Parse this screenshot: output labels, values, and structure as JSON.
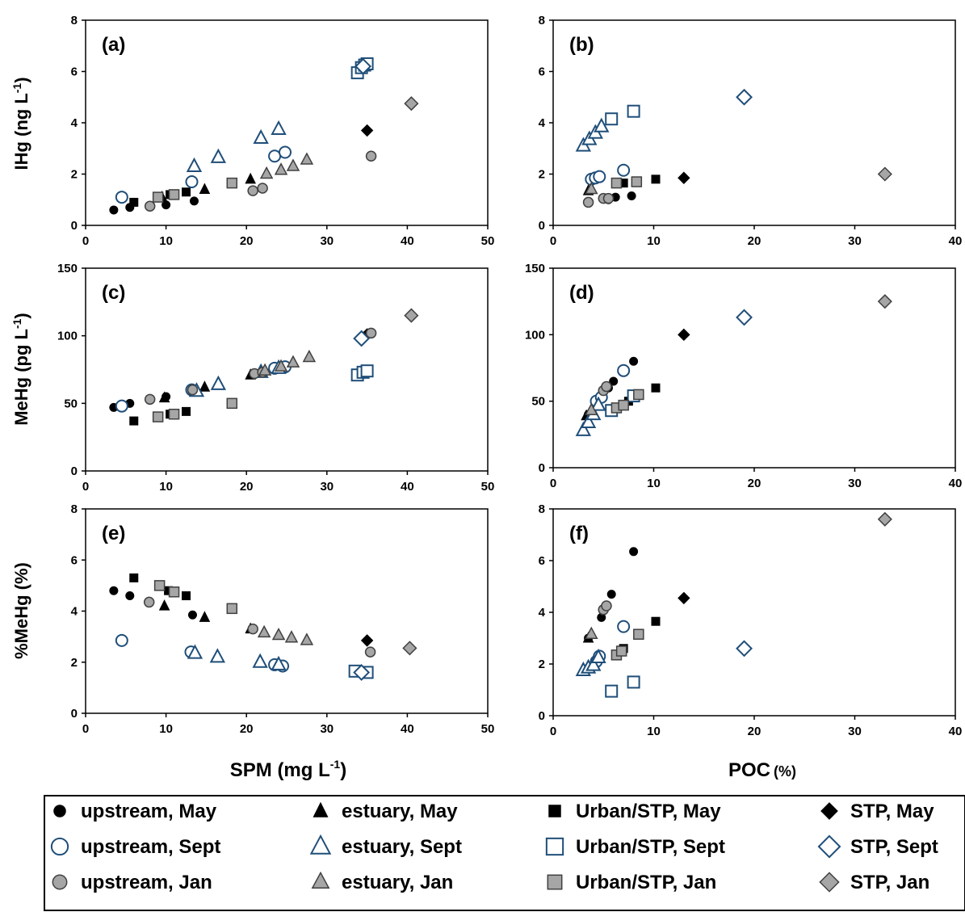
{
  "colors": {
    "may": "#000000",
    "sept_stroke": "#1f4e79",
    "sept_fill": "#ffffff",
    "jan_fill": "#a6a6a6",
    "jan_stroke": "#404040"
  },
  "axis_labels": {
    "a": "IHg (ng L",
    "a_sup": "-1",
    "a_end": ")",
    "c": "MeHg (pg L",
    "c_sup": "-1",
    "c_end": ")",
    "e": "%MeHg (%)",
    "x_left": "SPM (mg L",
    "x_left_sup": "-1",
    "x_left_end": ")",
    "x_right": "POC",
    "x_right_small": "(%)"
  },
  "legend": [
    {
      "label": "upstream, May",
      "marker": "circle",
      "month": "may"
    },
    {
      "label": "estuary, May",
      "marker": "triangle",
      "month": "may"
    },
    {
      "label": "Urban/STP, May",
      "marker": "square",
      "month": "may"
    },
    {
      "label": "STP, May",
      "marker": "diamond",
      "month": "may"
    },
    {
      "label": "upstream, Sept",
      "marker": "circle",
      "month": "sept"
    },
    {
      "label": "estuary, Sept",
      "marker": "triangle",
      "month": "sept"
    },
    {
      "label": "Urban/STP, Sept",
      "marker": "square",
      "month": "sept"
    },
    {
      "label": "STP, Sept",
      "marker": "diamond",
      "month": "sept"
    },
    {
      "label": "upstream, Jan",
      "marker": "circle",
      "month": "jan"
    },
    {
      "label": "estuary, Jan",
      "marker": "triangle",
      "month": "jan"
    },
    {
      "label": "Urban/STP, Jan",
      "marker": "square",
      "month": "jan"
    },
    {
      "label": "STP, Jan",
      "marker": "diamond",
      "month": "jan"
    }
  ],
  "chart_data": [
    {
      "type": "scatter",
      "panel": "(a)",
      "xlim": [
        0,
        50
      ],
      "ylim": [
        0,
        8
      ],
      "xticks": [
        0,
        10,
        20,
        30,
        40,
        50
      ],
      "yticks": [
        0,
        2,
        4,
        6,
        8
      ],
      "series": [
        {
          "name": "upstream, May",
          "x": [
            3.5,
            5.5,
            10,
            13.5
          ],
          "y": [
            0.6,
            0.7,
            0.8,
            0.95
          ]
        },
        {
          "name": "estuary, May",
          "x": [
            9.5,
            14.8,
            20.5
          ],
          "y": [
            1.1,
            1.4,
            1.8
          ]
        },
        {
          "name": "Urban/STP, May",
          "x": [
            6,
            10.5,
            12.5
          ],
          "y": [
            0.9,
            1.2,
            1.3
          ]
        },
        {
          "name": "STP, May",
          "x": [
            35
          ],
          "y": [
            3.7
          ]
        },
        {
          "name": "upstream, Sept",
          "x": [
            4.5,
            13.2,
            23.5,
            24.8
          ],
          "y": [
            1.1,
            1.7,
            2.7,
            2.85
          ]
        },
        {
          "name": "estuary, Sept",
          "x": [
            13.5,
            16.5,
            21.8,
            24
          ],
          "y": [
            2.3,
            2.65,
            3.4,
            3.75
          ]
        },
        {
          "name": "Urban/STP, Sept",
          "x": [
            33.8,
            34.3,
            34.7,
            35
          ],
          "y": [
            5.95,
            6.15,
            6.25,
            6.3
          ]
        },
        {
          "name": "STP, Sept",
          "x": [
            34.5
          ],
          "y": [
            6.2
          ]
        },
        {
          "name": "upstream, Jan",
          "x": [
            8,
            20.8,
            22,
            35.5
          ],
          "y": [
            0.75,
            1.35,
            1.45,
            2.7
          ]
        },
        {
          "name": "estuary, Jan",
          "x": [
            22.5,
            24.3,
            25.8,
            27.5
          ],
          "y": [
            2.0,
            2.15,
            2.3,
            2.55
          ]
        },
        {
          "name": "Urban/STP, Jan",
          "x": [
            9,
            11,
            18.2
          ],
          "y": [
            1.1,
            1.2,
            1.65
          ]
        },
        {
          "name": "STP, Jan",
          "x": [
            40.5
          ],
          "y": [
            4.75
          ]
        }
      ]
    },
    {
      "type": "scatter",
      "panel": "(b)",
      "xlim": [
        0,
        40
      ],
      "ylim": [
        0,
        8
      ],
      "xticks": [
        0,
        10,
        20,
        30,
        40
      ],
      "yticks": [
        0,
        2,
        4,
        6,
        8
      ],
      "series": [
        {
          "name": "upstream, May",
          "x": [
            5.5,
            6.2,
            7.8
          ],
          "y": [
            1.0,
            1.1,
            1.15
          ]
        },
        {
          "name": "estuary, May",
          "x": [
            3.5
          ],
          "y": [
            1.35
          ]
        },
        {
          "name": "Urban/STP, May",
          "x": [
            7,
            10.2
          ],
          "y": [
            1.65,
            1.8
          ]
        },
        {
          "name": "STP, May",
          "x": [
            13
          ],
          "y": [
            1.85
          ]
        },
        {
          "name": "upstream, Sept",
          "x": [
            3.8,
            4.2,
            4.6,
            7
          ],
          "y": [
            1.8,
            1.85,
            1.9,
            2.15
          ]
        },
        {
          "name": "estuary, Sept",
          "x": [
            3,
            3.6,
            4.2,
            4.8
          ],
          "y": [
            3.1,
            3.35,
            3.6,
            3.85
          ]
        },
        {
          "name": "Urban/STP, Sept",
          "x": [
            5.8,
            8
          ],
          "y": [
            4.15,
            4.45
          ]
        },
        {
          "name": "STP, Sept",
          "x": [
            19
          ],
          "y": [
            5.0
          ]
        },
        {
          "name": "upstream, Jan",
          "x": [
            3.5,
            5,
            5.5
          ],
          "y": [
            0.9,
            1.05,
            1.05
          ]
        },
        {
          "name": "estuary, Jan",
          "x": [
            3.8
          ],
          "y": [
            1.4
          ]
        },
        {
          "name": "Urban/STP, Jan",
          "x": [
            6.3,
            8.3
          ],
          "y": [
            1.65,
            1.7
          ]
        },
        {
          "name": "STP, Jan",
          "x": [
            33
          ],
          "y": [
            2.0
          ]
        }
      ]
    },
    {
      "type": "scatter",
      "panel": "(c)",
      "xlim": [
        0,
        50
      ],
      "ylim": [
        0,
        150
      ],
      "xticks": [
        0,
        10,
        20,
        30,
        40,
        50
      ],
      "yticks": [
        0,
        50,
        100,
        150
      ],
      "series": [
        {
          "name": "upstream, May",
          "x": [
            3.5,
            5.5,
            10,
            35.5
          ],
          "y": [
            47,
            50,
            55,
            102
          ]
        },
        {
          "name": "estuary, May",
          "x": [
            9.8,
            14.8,
            20.5
          ],
          "y": [
            54,
            62,
            71
          ]
        },
        {
          "name": "Urban/STP, May",
          "x": [
            6,
            10.5,
            12.5
          ],
          "y": [
            37,
            42,
            44
          ]
        },
        {
          "name": "STP, May",
          "x": [
            35
          ],
          "y": [
            101
          ]
        },
        {
          "name": "upstream, Sept",
          "x": [
            4.5,
            13.2,
            23.5,
            24.8
          ],
          "y": [
            48,
            60,
            76,
            77
          ]
        },
        {
          "name": "estuary, Sept",
          "x": [
            13.8,
            16.5,
            21.8,
            24
          ],
          "y": [
            59,
            64,
            73,
            76
          ]
        },
        {
          "name": "Urban/STP, Sept",
          "x": [
            33.8,
            34.5,
            35
          ],
          "y": [
            71,
            73,
            74
          ]
        },
        {
          "name": "STP, Sept",
          "x": [
            34.3
          ],
          "y": [
            98
          ]
        },
        {
          "name": "upstream, Jan",
          "x": [
            8,
            13.3,
            21,
            22,
            35.5
          ],
          "y": [
            53,
            60,
            72,
            73,
            102
          ]
        },
        {
          "name": "estuary, Jan",
          "x": [
            22.3,
            24.3,
            25.8,
            27.8
          ],
          "y": [
            74,
            77,
            80,
            84
          ]
        },
        {
          "name": "Urban/STP, Jan",
          "x": [
            9,
            11,
            18.2
          ],
          "y": [
            40,
            42,
            50
          ]
        },
        {
          "name": "STP, Jan",
          "x": [
            40.5
          ],
          "y": [
            115
          ]
        }
      ]
    },
    {
      "type": "scatter",
      "panel": "(d)",
      "xlim": [
        0,
        40
      ],
      "ylim": [
        0,
        150
      ],
      "xticks": [
        0,
        10,
        20,
        30,
        40
      ],
      "yticks": [
        0,
        50,
        100,
        150
      ],
      "series": [
        {
          "name": "upstream, May",
          "x": [
            3.5,
            5.5,
            6,
            8
          ],
          "y": [
            40,
            60,
            65,
            80
          ]
        },
        {
          "name": "estuary, May",
          "x": [
            3.3
          ],
          "y": [
            39
          ]
        },
        {
          "name": "Urban/STP, May",
          "x": [
            7.5,
            10.2
          ],
          "y": [
            50,
            60
          ]
        },
        {
          "name": "STP, May",
          "x": [
            13
          ],
          "y": [
            100
          ]
        },
        {
          "name": "upstream, Sept",
          "x": [
            4.3,
            4.8,
            7
          ],
          "y": [
            50,
            53,
            73
          ]
        },
        {
          "name": "estuary, Sept",
          "x": [
            3,
            3.5,
            4,
            4.5
          ],
          "y": [
            28,
            34,
            40,
            47
          ]
        },
        {
          "name": "Urban/STP, Sept",
          "x": [
            5.8,
            8
          ],
          "y": [
            43,
            54
          ]
        },
        {
          "name": "STP, Sept",
          "x": [
            19
          ],
          "y": [
            113
          ]
        },
        {
          "name": "upstream, Jan",
          "x": [
            5,
            5.3
          ],
          "y": [
            58,
            61
          ]
        },
        {
          "name": "estuary, Jan",
          "x": [
            3.8
          ],
          "y": [
            43
          ]
        },
        {
          "name": "Urban/STP, Jan",
          "x": [
            6.3,
            7,
            8.5
          ],
          "y": [
            45,
            47,
            55
          ]
        },
        {
          "name": "STP, Jan",
          "x": [
            33
          ],
          "y": [
            125
          ]
        }
      ]
    },
    {
      "type": "scatter",
      "panel": "(e)",
      "xlim": [
        0,
        50
      ],
      "ylim": [
        0,
        8
      ],
      "xticks": [
        0,
        10,
        20,
        30,
        40,
        50
      ],
      "yticks": [
        0,
        2,
        4,
        6,
        8
      ],
      "series": [
        {
          "name": "upstream, May",
          "x": [
            3.5,
            5.5,
            13.3
          ],
          "y": [
            4.8,
            4.6,
            3.85
          ]
        },
        {
          "name": "estuary, May",
          "x": [
            9.8,
            14.8,
            20.5
          ],
          "y": [
            4.2,
            3.75,
            3.3
          ]
        },
        {
          "name": "Urban/STP, May",
          "x": [
            6,
            10.3,
            12.5
          ],
          "y": [
            5.3,
            4.8,
            4.6
          ]
        },
        {
          "name": "STP, May",
          "x": [
            35
          ],
          "y": [
            2.85
          ]
        },
        {
          "name": "upstream, Sept",
          "x": [
            4.5,
            13.1,
            23.5,
            24.5
          ],
          "y": [
            2.85,
            2.4,
            1.9,
            1.85
          ]
        },
        {
          "name": "estuary, Sept",
          "x": [
            13.6,
            16.4,
            21.7,
            24
          ],
          "y": [
            2.35,
            2.2,
            2.0,
            1.9
          ]
        },
        {
          "name": "Urban/STP, Sept",
          "x": [
            33.5,
            35
          ],
          "y": [
            1.65,
            1.6
          ]
        },
        {
          "name": "STP, Sept",
          "x": [
            34.3
          ],
          "y": [
            1.6
          ]
        },
        {
          "name": "upstream, Jan",
          "x": [
            7.9,
            20.8,
            35.4
          ],
          "y": [
            4.35,
            3.3,
            2.4
          ]
        },
        {
          "name": "estuary, Jan",
          "x": [
            22.2,
            24,
            25.6,
            27.5
          ],
          "y": [
            3.15,
            3.05,
            2.95,
            2.85
          ]
        },
        {
          "name": "Urban/STP, Jan",
          "x": [
            9.2,
            11,
            18.2
          ],
          "y": [
            5.0,
            4.75,
            4.1
          ]
        },
        {
          "name": "STP, Jan",
          "x": [
            40.3
          ],
          "y": [
            2.55
          ]
        }
      ]
    },
    {
      "type": "scatter",
      "panel": "(f)",
      "xlim": [
        0,
        40
      ],
      "ylim": [
        0,
        8
      ],
      "xticks": [
        0,
        10,
        20,
        30,
        40
      ],
      "yticks": [
        0,
        2,
        4,
        6,
        8
      ],
      "series": [
        {
          "name": "upstream, May",
          "x": [
            3.5,
            4.8,
            5.8,
            8
          ],
          "y": [
            3.0,
            3.8,
            4.7,
            6.35
          ]
        },
        {
          "name": "estuary, May",
          "x": [
            3.5
          ],
          "y": [
            3.0
          ]
        },
        {
          "name": "Urban/STP, May",
          "x": [
            7,
            10.2
          ],
          "y": [
            2.6,
            3.65
          ]
        },
        {
          "name": "STP, May",
          "x": [
            13
          ],
          "y": [
            4.55
          ]
        },
        {
          "name": "upstream, Sept",
          "x": [
            4.3,
            4.6,
            7
          ],
          "y": [
            2.1,
            2.3,
            3.45
          ]
        },
        {
          "name": "estuary, Sept",
          "x": [
            3,
            3.5,
            4,
            4.5
          ],
          "y": [
            1.75,
            1.85,
            1.95,
            2.25
          ]
        },
        {
          "name": "Urban/STP, Sept",
          "x": [
            5.8,
            8
          ],
          "y": [
            0.95,
            1.3
          ]
        },
        {
          "name": "STP, Sept",
          "x": [
            19
          ],
          "y": [
            2.6
          ]
        },
        {
          "name": "upstream, Jan",
          "x": [
            5,
            5.3
          ],
          "y": [
            4.1,
            4.25
          ]
        },
        {
          "name": "estuary, Jan",
          "x": [
            3.8
          ],
          "y": [
            3.15
          ]
        },
        {
          "name": "Urban/STP, Jan",
          "x": [
            6.3,
            6.8,
            8.5
          ],
          "y": [
            2.35,
            2.5,
            3.15
          ]
        },
        {
          "name": "STP, Jan",
          "x": [
            33
          ],
          "y": [
            7.6
          ]
        }
      ]
    }
  ]
}
